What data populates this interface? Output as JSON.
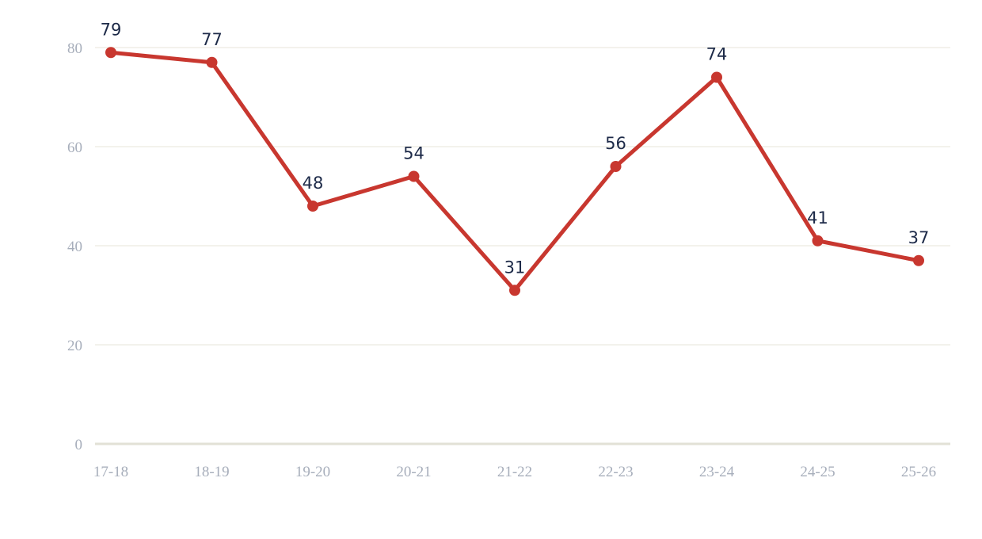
{
  "chart_data": {
    "type": "line",
    "categories": [
      "17-18",
      "18-19",
      "19-20",
      "20-21",
      "21-22",
      "22-23",
      "23-24",
      "24-25",
      "25-26"
    ],
    "values": [
      79,
      77,
      48,
      54,
      31,
      56,
      74,
      41,
      37
    ],
    "color": "#c8372f",
    "ylim": [
      0,
      80
    ],
    "yticks": [
      0,
      20,
      40,
      60,
      80
    ],
    "grid": true
  }
}
